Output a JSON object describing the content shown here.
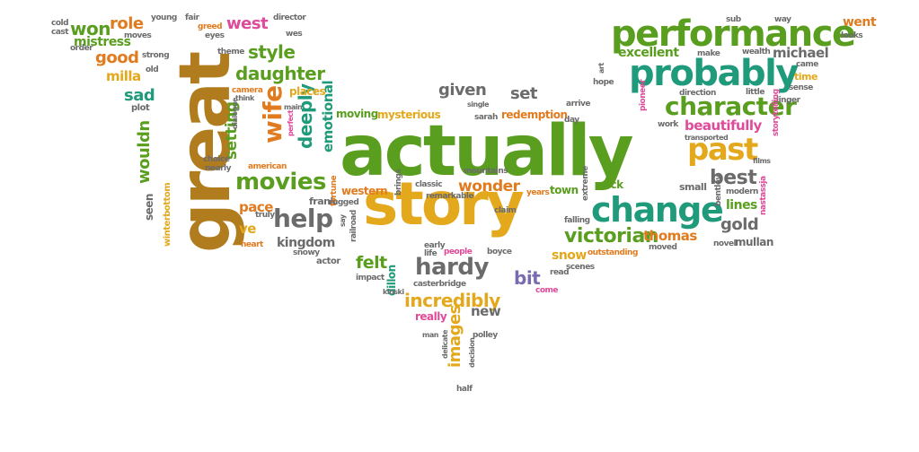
{
  "palette": {
    "green": "#5a9e1f",
    "teal": "#1f9a7a",
    "orange": "#e07b1f",
    "gold": "#e3a81b",
    "brown": "#b07c1e",
    "gray": "#6b6b6b",
    "pink": "#e04a9a",
    "purple": "#7a6ab0",
    "blue": "#3a86b8",
    "red": "#d2473a"
  },
  "words": [
    {
      "text": "actually",
      "color": "#5a9e1f"
    },
    {
      "text": "great",
      "color": "#b07c1e"
    },
    {
      "text": "story",
      "color": "#e3a81b"
    },
    {
      "text": "performance",
      "color": "#5a9e1f"
    },
    {
      "text": "probably",
      "color": "#1f9a7a"
    },
    {
      "text": "character",
      "color": "#5a9e1f"
    },
    {
      "text": "change",
      "color": "#1f9a7a"
    },
    {
      "text": "past",
      "color": "#e3a81b"
    },
    {
      "text": "help",
      "color": "#6b6b6b"
    },
    {
      "text": "movies",
      "color": "#5a9e1f"
    },
    {
      "text": "hardy",
      "color": "#6b6b6b"
    },
    {
      "text": "wife",
      "color": "#e07b1f"
    },
    {
      "text": "incredibly",
      "color": "#e3a81b"
    },
    {
      "text": "victorian",
      "color": "#5a9e1f"
    },
    {
      "text": "best",
      "color": "#6b6b6b"
    },
    {
      "text": "daughter",
      "color": "#5a9e1f"
    },
    {
      "text": "wonder",
      "color": "#e07b1f"
    },
    {
      "text": "style",
      "color": "#5a9e1f"
    },
    {
      "text": "west",
      "color": "#e04a9a"
    },
    {
      "text": "role",
      "color": "#e07b1f"
    },
    {
      "text": "won",
      "color": "#5a9e1f"
    },
    {
      "text": "good",
      "color": "#e07b1f"
    },
    {
      "text": "given",
      "color": "#6b6b6b"
    },
    {
      "text": "deeply",
      "color": "#1f9a7a"
    },
    {
      "text": "setting",
      "color": "#5a9e1f"
    },
    {
      "text": "gold",
      "color": "#6b6b6b"
    },
    {
      "text": "thomas",
      "color": "#e07b1f"
    },
    {
      "text": "excellent",
      "color": "#5a9e1f"
    },
    {
      "text": "michael",
      "color": "#6b6b6b"
    },
    {
      "text": "beautifully",
      "color": "#e04a9a"
    },
    {
      "text": "kingdom",
      "color": "#6b6b6b"
    },
    {
      "text": "felt",
      "color": "#5a9e1f"
    },
    {
      "text": "bit",
      "color": "#7a6ab0"
    },
    {
      "text": "images",
      "color": "#e3a81b"
    },
    {
      "text": "new",
      "color": "#6b6b6b"
    },
    {
      "text": "wouldn",
      "color": "#5a9e1f"
    },
    {
      "text": "sad",
      "color": "#1f9a7a"
    },
    {
      "text": "milla",
      "color": "#e3a81b"
    },
    {
      "text": "mistress",
      "color": "#5a9e1f"
    },
    {
      "text": "emotional",
      "color": "#1f9a7a"
    },
    {
      "text": "went",
      "color": "#e07b1f"
    },
    {
      "text": "pace",
      "color": "#e07b1f"
    },
    {
      "text": "ve",
      "color": "#e3a81b"
    },
    {
      "text": "set",
      "color": "#6b6b6b"
    },
    {
      "text": "lines",
      "color": "#5a9e1f"
    },
    {
      "text": "snow",
      "color": "#e3a81b"
    },
    {
      "text": "mysterious",
      "color": "#e3a81b"
    },
    {
      "text": "moving",
      "color": "#5a9e1f"
    },
    {
      "text": "redemption",
      "color": "#e07b1f"
    },
    {
      "text": "western",
      "color": "#e07b1f"
    },
    {
      "text": "frank",
      "color": "#6b6b6b"
    },
    {
      "text": "seen",
      "color": "#6b6b6b"
    },
    {
      "text": "mullan",
      "color": "#6b6b6b"
    },
    {
      "text": "really",
      "color": "#e04a9a"
    },
    {
      "text": "dillon",
      "color": "#1f9a7a"
    },
    {
      "text": "town",
      "color": "#5a9e1f"
    },
    {
      "text": "stick",
      "color": "#5a9e1f"
    },
    {
      "text": "places",
      "color": "#e3a81b"
    },
    {
      "text": "winterbottom",
      "color": "#e3a81b"
    },
    {
      "text": "small",
      "color": "#6b6b6b"
    },
    {
      "text": "time",
      "color": "#e3a81b"
    },
    {
      "text": "plot",
      "color": "#6b6b6b"
    },
    {
      "text": "cold",
      "color": "#6b6b6b"
    },
    {
      "text": "cast",
      "color": "#6b6b6b"
    },
    {
      "text": "order",
      "color": "#6b6b6b"
    },
    {
      "text": "young",
      "color": "#6b6b6b"
    },
    {
      "text": "moves",
      "color": "#6b6b6b"
    },
    {
      "text": "strong",
      "color": "#6b6b6b"
    },
    {
      "text": "old",
      "color": "#6b6b6b"
    },
    {
      "text": "fair",
      "color": "#6b6b6b"
    },
    {
      "text": "greed",
      "color": "#e07b1f"
    },
    {
      "text": "eyes",
      "color": "#6b6b6b"
    },
    {
      "text": "director",
      "color": "#6b6b6b"
    },
    {
      "text": "wes",
      "color": "#6b6b6b"
    },
    {
      "text": "theme",
      "color": "#6b6b6b"
    },
    {
      "text": "camera",
      "color": "#e07b1f"
    },
    {
      "text": "think",
      "color": "#6b6b6b"
    },
    {
      "text": "dialogue",
      "color": "#6b6b6b"
    },
    {
      "text": "main",
      "color": "#6b6b6b"
    },
    {
      "text": "perfect",
      "color": "#e04a9a"
    },
    {
      "text": "american",
      "color": "#e07b1f"
    },
    {
      "text": "choice",
      "color": "#6b6b6b"
    },
    {
      "text": "nearly",
      "color": "#6b6b6b"
    },
    {
      "text": "fortune",
      "color": "#e07b1f"
    },
    {
      "text": "rugged",
      "color": "#6b6b6b"
    },
    {
      "text": "railroad",
      "color": "#6b6b6b"
    },
    {
      "text": "say",
      "color": "#6b6b6b"
    },
    {
      "text": "truly",
      "color": "#6b6b6b"
    },
    {
      "text": "heart",
      "color": "#e07b1f"
    },
    {
      "text": "snowy",
      "color": "#6b6b6b"
    },
    {
      "text": "actor",
      "color": "#6b6b6b"
    },
    {
      "text": "impact",
      "color": "#6b6b6b"
    },
    {
      "text": "kinski",
      "color": "#6b6b6b"
    },
    {
      "text": "casterbridge",
      "color": "#6b6b6b"
    },
    {
      "text": "early",
      "color": "#6b6b6b"
    },
    {
      "text": "life",
      "color": "#6b6b6b"
    },
    {
      "text": "people",
      "color": "#e04a9a"
    },
    {
      "text": "boyce",
      "color": "#6b6b6b"
    },
    {
      "text": "read",
      "color": "#6b6b6b"
    },
    {
      "text": "come",
      "color": "#e04a9a"
    },
    {
      "text": "scenes",
      "color": "#6b6b6b"
    },
    {
      "text": "outstanding",
      "color": "#e07b1f"
    },
    {
      "text": "moved",
      "color": "#6b6b6b"
    },
    {
      "text": "novel",
      "color": "#6b6b6b"
    },
    {
      "text": "falling",
      "color": "#6b6b6b"
    },
    {
      "text": "extreme",
      "color": "#6b6b6b"
    },
    {
      "text": "brings",
      "color": "#6b6b6b"
    },
    {
      "text": "years",
      "color": "#e07b1f"
    },
    {
      "text": "claim",
      "color": "#6b6b6b"
    },
    {
      "text": "remarkable",
      "color": "#6b6b6b"
    },
    {
      "text": "classic",
      "color": "#6b6b6b"
    },
    {
      "text": "mountains",
      "color": "#6b6b6b"
    },
    {
      "text": "sarah",
      "color": "#6b6b6b"
    },
    {
      "text": "single",
      "color": "#6b6b6b"
    },
    {
      "text": "day",
      "color": "#6b6b6b"
    },
    {
      "text": "arrive",
      "color": "#6b6b6b"
    },
    {
      "text": "hope",
      "color": "#6b6b6b"
    },
    {
      "text": "art",
      "color": "#6b6b6b"
    },
    {
      "text": "pioneer",
      "color": "#e04a9a"
    },
    {
      "text": "work",
      "color": "#6b6b6b"
    },
    {
      "text": "direction",
      "color": "#6b6b6b"
    },
    {
      "text": "transported",
      "color": "#6b6b6b"
    },
    {
      "text": "little",
      "color": "#6b6b6b"
    },
    {
      "text": "linger",
      "color": "#6b6b6b"
    },
    {
      "text": "sense",
      "color": "#6b6b6b"
    },
    {
      "text": "storytelling",
      "color": "#e04a9a"
    },
    {
      "text": "films",
      "color": "#6b6b6b"
    },
    {
      "text": "modern",
      "color": "#6b6b6b"
    },
    {
      "text": "bentley",
      "color": "#6b6b6b"
    },
    {
      "text": "nastassja",
      "color": "#e04a9a"
    },
    {
      "text": "sub",
      "color": "#6b6b6b"
    },
    {
      "text": "way",
      "color": "#6b6b6b"
    },
    {
      "text": "looks",
      "color": "#6b6b6b"
    },
    {
      "text": "make",
      "color": "#6b6b6b"
    },
    {
      "text": "wealth",
      "color": "#6b6b6b"
    },
    {
      "text": "came",
      "color": "#6b6b6b"
    },
    {
      "text": "man",
      "color": "#6b6b6b"
    },
    {
      "text": "polley",
      "color": "#6b6b6b"
    },
    {
      "text": "delicate",
      "color": "#6b6b6b"
    },
    {
      "text": "decision",
      "color": "#6b6b6b"
    },
    {
      "text": "half",
      "color": "#6b6b6b"
    }
  ]
}
